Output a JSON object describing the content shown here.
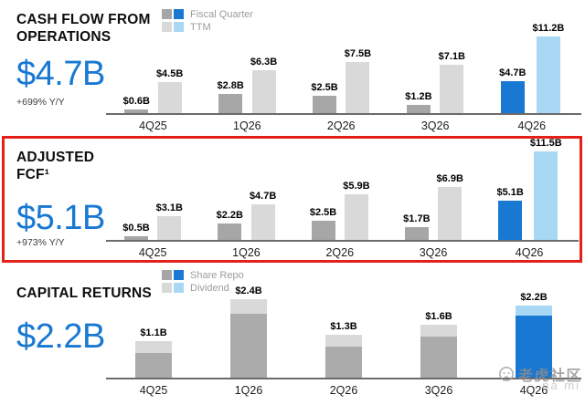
{
  "colors": {
    "blue_dark": "#1878d2",
    "blue_light": "#a9d8f4",
    "gray_dark": "#a6a6a6",
    "gray_mid": "#ababab",
    "gray_light": "#d9d9d9",
    "headline_blue": "#1878d2",
    "highlight_box_red": "#e32119",
    "axis_gray": "#6b6b6b",
    "legend_text_gray": "#9c9c9c"
  },
  "sections": [
    {
      "id": "cash-flow-from-operations",
      "title_lines": [
        "CASH FLOW FROM",
        "OPERATIONS"
      ],
      "headline": "$4.7B",
      "delta": "+699% Y/Y",
      "highlighted": false,
      "legend": [
        {
          "label": "Fiscal Quarter"
        },
        {
          "label": "TTM"
        }
      ]
    },
    {
      "id": "adjusted-fcf",
      "title_lines": [
        "ADJUSTED",
        "FCF¹"
      ],
      "headline": "$5.1B",
      "delta": "+973% Y/Y",
      "highlighted": true
    },
    {
      "id": "capital-returns",
      "title_lines": [
        "CAPITAL RETURNS"
      ],
      "headline": "$2.2B",
      "highlighted": false,
      "legend": [
        {
          "label": "Share Repo"
        },
        {
          "label": "Dividend"
        }
      ]
    }
  ],
  "watermark": {
    "icon": "tiger-logo",
    "text": "老虎社区",
    "trailing_text": "na mi"
  },
  "chart_data": [
    {
      "type": "bar",
      "title": "Cash Flow From Operations",
      "categories": [
        "4Q25",
        "1Q26",
        "2Q26",
        "3Q26",
        "4Q26"
      ],
      "series": [
        {
          "name": "Fiscal Quarter",
          "values": [
            0.6,
            2.8,
            2.5,
            1.2,
            4.7
          ]
        },
        {
          "name": "TTM",
          "values": [
            4.5,
            6.3,
            7.5,
            7.1,
            11.2
          ]
        }
      ],
      "value_label_format": "$#.#B",
      "highlight_category": "4Q26",
      "ylim": [
        0,
        11.2
      ],
      "grid": false,
      "legend_position": "top"
    },
    {
      "type": "bar",
      "title": "Adjusted FCF",
      "categories": [
        "4Q25",
        "1Q26",
        "2Q26",
        "3Q26",
        "4Q26"
      ],
      "series": [
        {
          "name": "Fiscal Quarter",
          "values": [
            0.5,
            2.2,
            2.5,
            1.7,
            5.1
          ]
        },
        {
          "name": "TTM",
          "values": [
            3.1,
            4.7,
            5.9,
            6.9,
            11.5
          ]
        }
      ],
      "value_label_format": "$#.#B",
      "highlight_category": "4Q26",
      "ylim": [
        0,
        11.5
      ],
      "grid": false,
      "legend_position": "none"
    },
    {
      "type": "bar",
      "stacked": true,
      "title": "Capital Returns",
      "categories": [
        "4Q25",
        "1Q26",
        "2Q26",
        "3Q26",
        "4Q26"
      ],
      "series": [
        {
          "name": "Share Repo",
          "values": [
            0.75,
            1.95,
            0.95,
            1.25,
            1.9
          ]
        },
        {
          "name": "Dividend",
          "values": [
            0.35,
            0.45,
            0.35,
            0.35,
            0.3
          ]
        }
      ],
      "totals": [
        1.1,
        2.4,
        1.3,
        1.6,
        2.2
      ],
      "value_label_format": "$#.#B",
      "highlight_category": "4Q26",
      "ylim": [
        0,
        2.4
      ],
      "grid": false,
      "legend_position": "top"
    }
  ]
}
